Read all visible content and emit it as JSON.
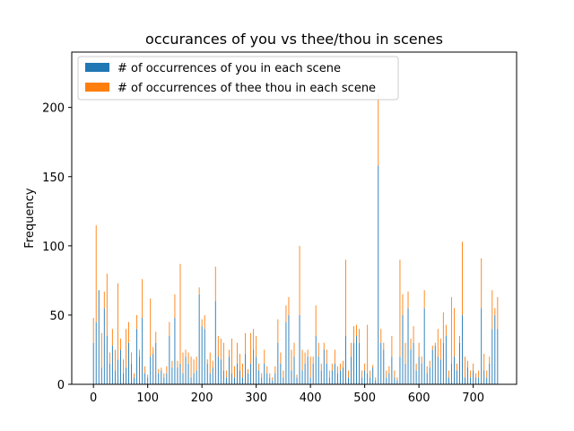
{
  "chart_data": {
    "type": "bar",
    "stacked": true,
    "title": "occurances of you vs thee/thou in scenes",
    "xlabel": "",
    "ylabel": "Frequency",
    "xlim": [
      -40,
      780
    ],
    "ylim": [
      0,
      240
    ],
    "xticks": [
      0,
      100,
      200,
      300,
      400,
      500,
      600,
      700
    ],
    "yticks": [
      0,
      50,
      100,
      150,
      200
    ],
    "legend_position": "top-left",
    "colors": {
      "you": "#1f77b4",
      "thee": "#ff7f0e"
    },
    "x": [
      0,
      5,
      10,
      15,
      20,
      25,
      30,
      35,
      40,
      45,
      50,
      55,
      60,
      65,
      70,
      75,
      80,
      85,
      90,
      95,
      100,
      105,
      110,
      115,
      120,
      125,
      130,
      135,
      140,
      145,
      150,
      155,
      160,
      165,
      170,
      175,
      180,
      185,
      190,
      195,
      200,
      205,
      210,
      215,
      220,
      225,
      230,
      235,
      240,
      245,
      250,
      255,
      260,
      265,
      270,
      275,
      280,
      285,
      290,
      295,
      300,
      305,
      310,
      315,
      320,
      325,
      330,
      335,
      340,
      345,
      350,
      355,
      360,
      365,
      370,
      375,
      380,
      385,
      390,
      395,
      400,
      405,
      410,
      415,
      420,
      425,
      430,
      435,
      440,
      445,
      450,
      455,
      460,
      465,
      470,
      475,
      480,
      485,
      490,
      495,
      500,
      505,
      510,
      515,
      520,
      525,
      530,
      535,
      540,
      545,
      550,
      555,
      560,
      565,
      570,
      575,
      580,
      585,
      590,
      595,
      600,
      605,
      610,
      615,
      620,
      625,
      630,
      635,
      640,
      645,
      650,
      655,
      660,
      665,
      670,
      675,
      680,
      685,
      690,
      695,
      700,
      705,
      710,
      715,
      720,
      725,
      730,
      735,
      740,
      745
    ],
    "series": [
      {
        "name": "# of occurrences of you in each scene",
        "values": [
          30,
          45,
          68,
          12,
          55,
          35,
          15,
          28,
          10,
          18,
          25,
          8,
          12,
          30,
          15,
          5,
          40,
          20,
          48,
          8,
          5,
          20,
          22,
          30,
          8,
          10,
          5,
          8,
          35,
          12,
          48,
          12,
          15,
          8,
          20,
          15,
          5,
          8,
          10,
          65,
          42,
          40,
          15,
          8,
          12,
          60,
          20,
          18,
          10,
          5,
          20,
          8,
          5,
          15,
          10,
          5,
          22,
          8,
          15,
          25,
          20,
          10,
          5,
          15,
          8,
          5,
          3,
          8,
          30,
          15,
          5,
          45,
          50,
          10,
          20,
          5,
          50,
          10,
          15,
          20,
          5,
          15,
          35,
          20,
          10,
          25,
          15,
          5,
          10,
          15,
          8,
          10,
          12,
          35,
          5,
          20,
          30,
          35,
          30,
          5,
          10,
          8,
          5,
          12,
          3,
          158,
          30,
          25,
          5,
          8,
          20,
          5,
          3,
          20,
          50,
          15,
          55,
          25,
          30,
          10,
          20,
          15,
          55,
          8,
          12,
          25,
          28,
          20,
          18,
          30,
          35,
          5,
          15,
          20,
          10,
          30,
          50,
          5,
          12,
          5,
          10,
          5,
          5,
          55,
          10,
          5,
          15,
          40,
          50,
          40
        ]
      },
      {
        "name": "# of occurrences of thee thou in each scene",
        "values": [
          18,
          70,
          0,
          25,
          12,
          45,
          8,
          12,
          15,
          55,
          8,
          10,
          28,
          15,
          8,
          3,
          10,
          5,
          28,
          5,
          2,
          42,
          5,
          8,
          3,
          2,
          3,
          5,
          10,
          5,
          17,
          5,
          72,
          15,
          5,
          8,
          15,
          10,
          10,
          5,
          5,
          10,
          3,
          15,
          5,
          25,
          15,
          15,
          20,
          5,
          5,
          25,
          8,
          15,
          12,
          10,
          15,
          3,
          22,
          15,
          15,
          5,
          3,
          10,
          5,
          3,
          2,
          5,
          17,
          8,
          5,
          12,
          13,
          15,
          10,
          2,
          50,
          15,
          8,
          5,
          15,
          5,
          22,
          10,
          5,
          5,
          10,
          5,
          5,
          10,
          5,
          5,
          5,
          55,
          5,
          10,
          12,
          8,
          10,
          5,
          5,
          35,
          5,
          2,
          2,
          52,
          10,
          5,
          5,
          5,
          15,
          5,
          2,
          70,
          15,
          15,
          12,
          8,
          12,
          5,
          10,
          5,
          13,
          5,
          5,
          3,
          2,
          20,
          15,
          22,
          8,
          5,
          48,
          35,
          5,
          5,
          53,
          15,
          5,
          5,
          5,
          3,
          5,
          36,
          12,
          5,
          5,
          28,
          5,
          23
        ]
      }
    ]
  }
}
